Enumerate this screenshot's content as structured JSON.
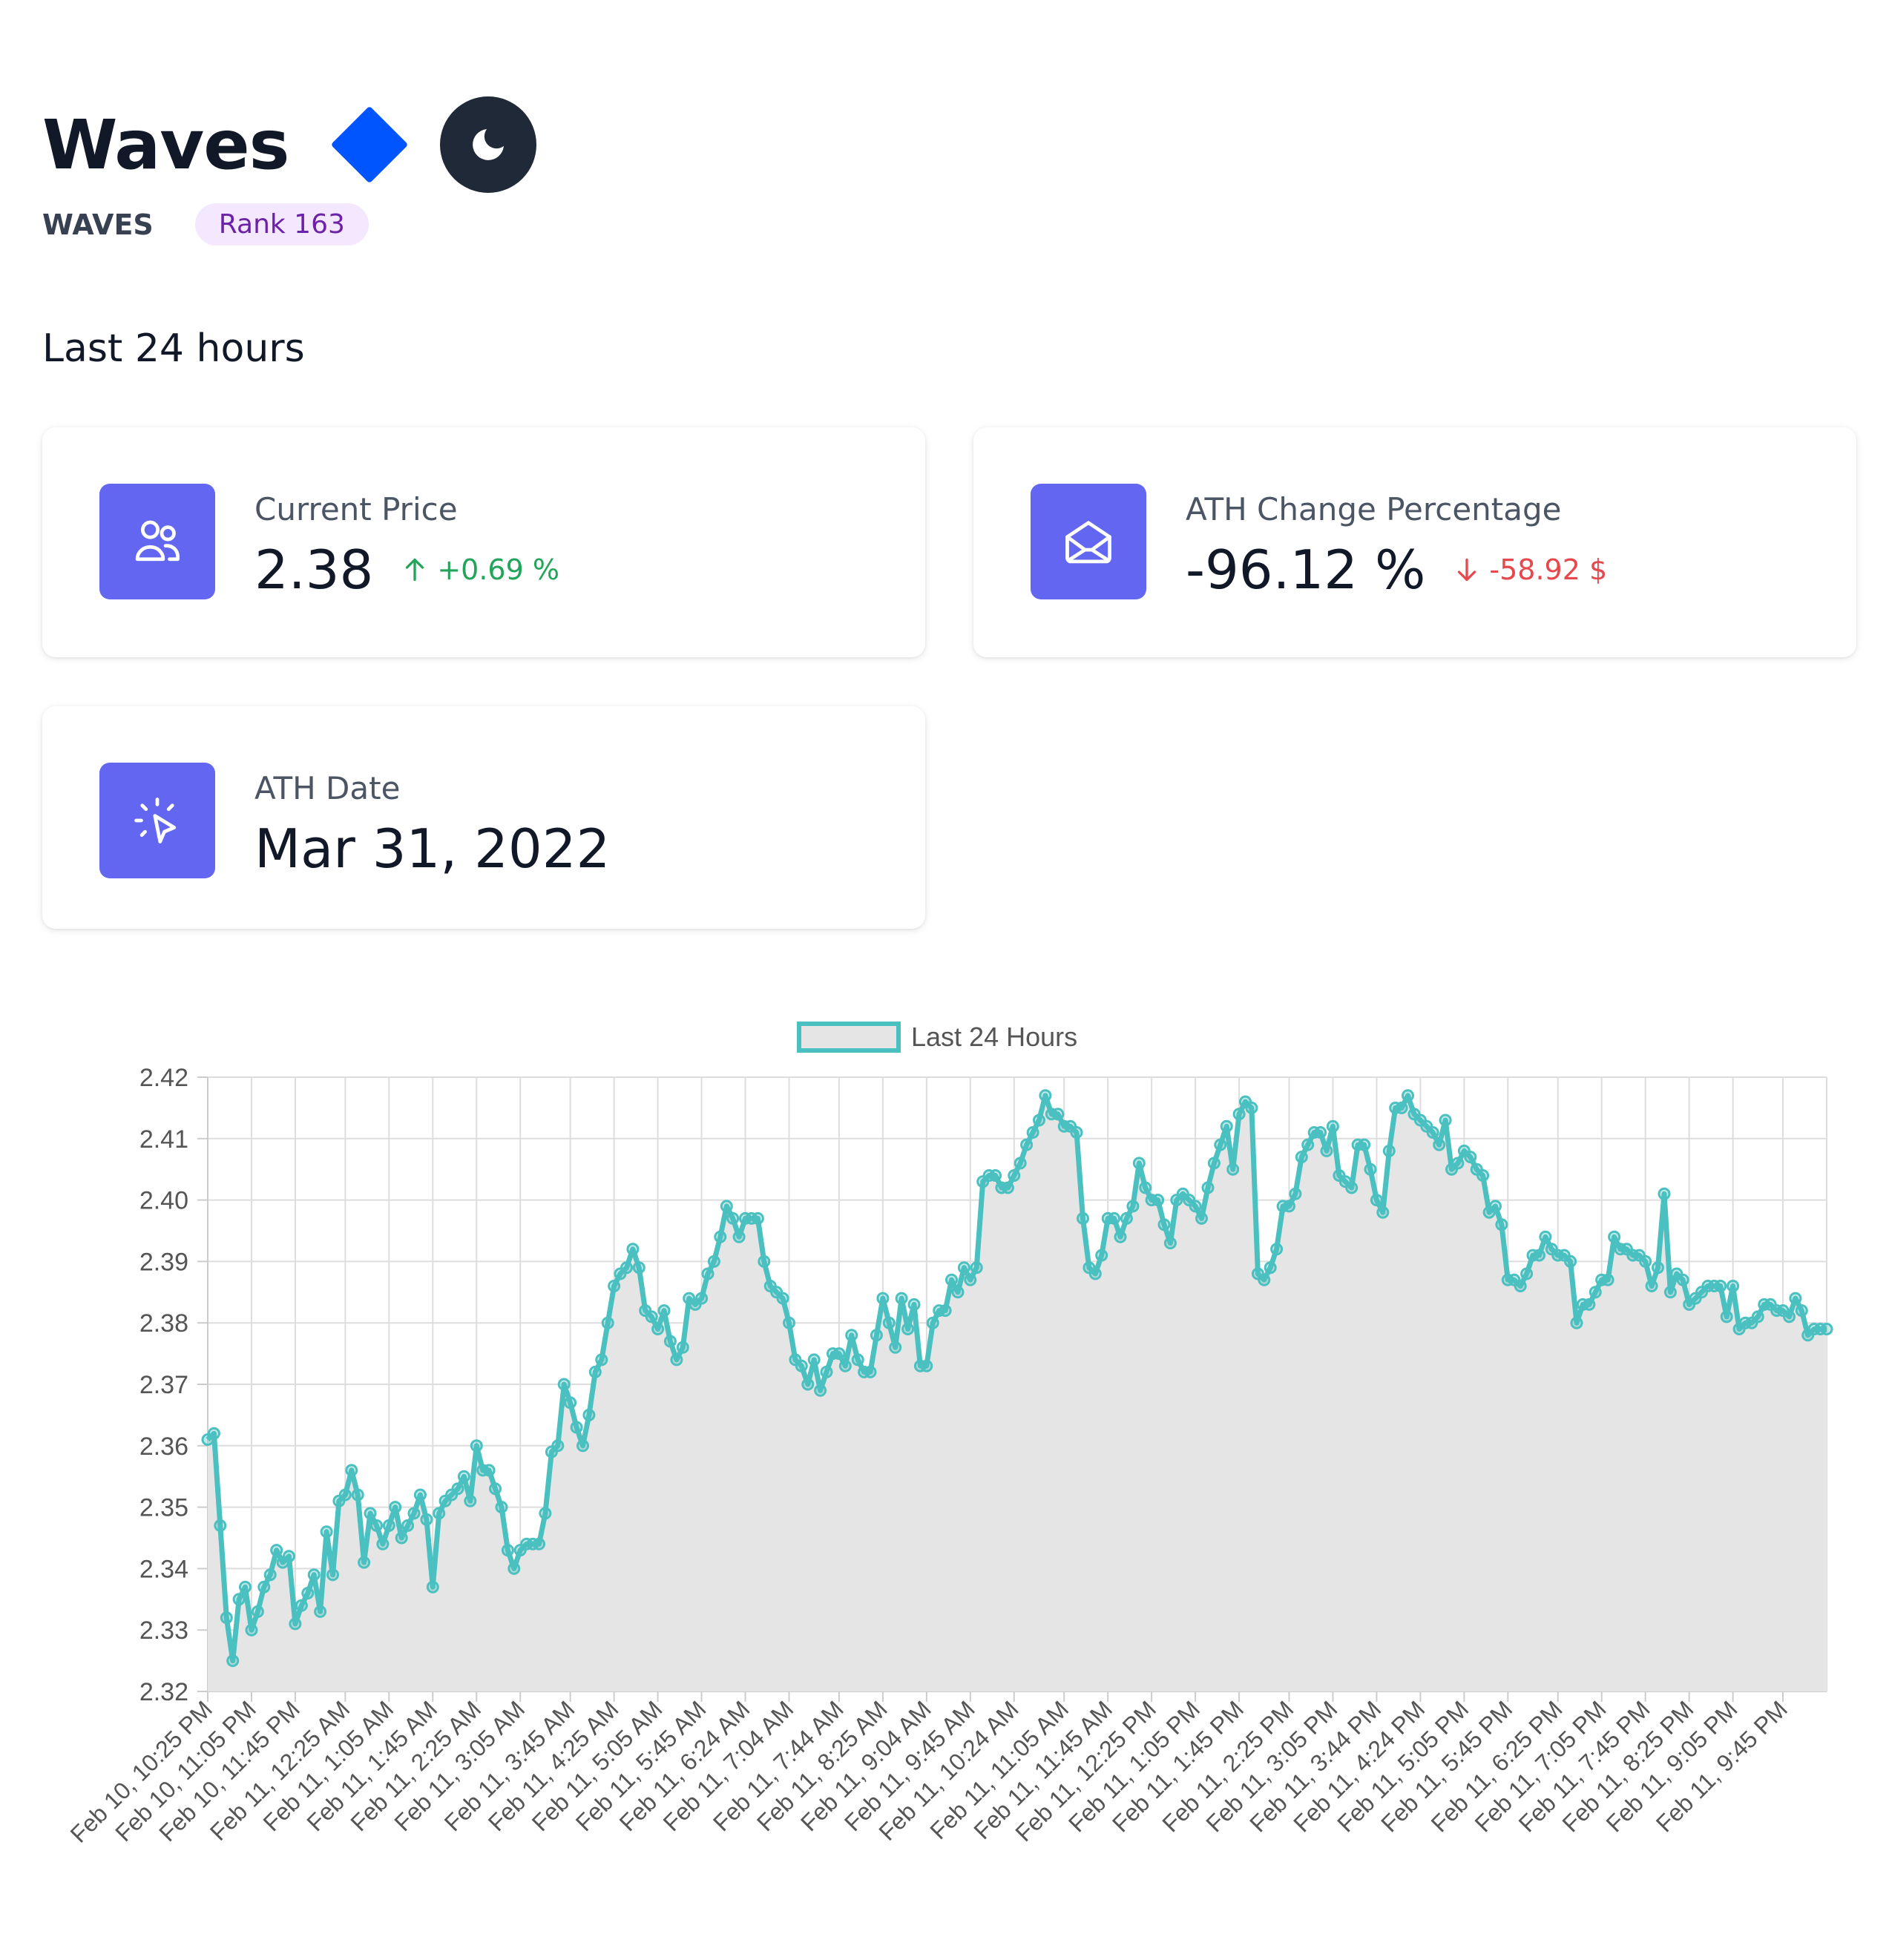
{
  "coin": {
    "name": "Waves",
    "symbol": "WAVES",
    "rank_label": "Rank 163"
  },
  "colors": {
    "accent": "#6366f1",
    "diamond": "#0055ff",
    "up": "#22a55a",
    "down": "#e5484d",
    "line": "#4bc0c0",
    "fill": "#e5e5e5"
  },
  "section_title": "Last 24 hours",
  "cards": {
    "current_price": {
      "icon": "users-icon",
      "label": "Current Price",
      "value": "2.38",
      "change": "+0.69 %",
      "direction": "up"
    },
    "ath_change": {
      "icon": "envelope-open-icon",
      "label": "ATH Change Percentage",
      "value": "-96.12 %",
      "change": "-58.92 $",
      "direction": "down"
    },
    "ath_date": {
      "icon": "cursor-click-icon",
      "label": "ATH Date",
      "value": "Mar 31, 2022"
    }
  },
  "chart_data": {
    "type": "line",
    "legend": "Last 24 Hours",
    "legend_position": "top-center",
    "grid": true,
    "ylim": [
      2.32,
      2.42
    ],
    "y_ticks": [
      "2.42",
      "2.41",
      "2.40",
      "2.39",
      "2.38",
      "2.37",
      "2.36",
      "2.35",
      "2.34",
      "2.33",
      "2.32"
    ],
    "x_tick_labels": [
      "Feb 10, 10:25 PM",
      "Feb 10, 11:05 PM",
      "Feb 10, 11:45 PM",
      "Feb 11, 12:25 AM",
      "Feb 11, 1:05 AM",
      "Feb 11, 1:45 AM",
      "Feb 11, 2:25 AM",
      "Feb 11, 3:05 AM",
      "Feb 11, 3:45 AM",
      "Feb 11, 4:25 AM",
      "Feb 11, 5:05 AM",
      "Feb 11, 5:45 AM",
      "Feb 11, 6:24 AM",
      "Feb 11, 7:04 AM",
      "Feb 11, 7:44 AM",
      "Feb 11, 8:25 AM",
      "Feb 11, 9:04 AM",
      "Feb 11, 9:45 AM",
      "Feb 11, 10:24 AM",
      "Feb 11, 11:05 AM",
      "Feb 11, 11:45 AM",
      "Feb 11, 12:25 PM",
      "Feb 11, 1:05 PM",
      "Feb 11, 1:45 PM",
      "Feb 11, 2:25 PM",
      "Feb 11, 3:05 PM",
      "Feb 11, 3:44 PM",
      "Feb 11, 4:24 PM",
      "Feb 11, 5:05 PM",
      "Feb 11, 5:45 PM",
      "Feb 11, 6:25 PM",
      "Feb 11, 7:05 PM",
      "Feb 11, 7:45 PM",
      "Feb 11, 8:25 PM",
      "Feb 11, 9:05 PM",
      "Feb 11, 9:45 PM"
    ],
    "values": [
      2.361,
      2.362,
      2.347,
      2.332,
      2.325,
      2.335,
      2.337,
      2.33,
      2.333,
      2.337,
      2.339,
      2.343,
      2.341,
      2.342,
      2.331,
      2.334,
      2.336,
      2.339,
      2.333,
      2.346,
      2.339,
      2.351,
      2.352,
      2.356,
      2.352,
      2.341,
      2.349,
      2.347,
      2.344,
      2.347,
      2.35,
      2.345,
      2.347,
      2.349,
      2.352,
      2.348,
      2.337,
      2.349,
      2.351,
      2.352,
      2.353,
      2.355,
      2.351,
      2.36,
      2.356,
      2.356,
      2.353,
      2.35,
      2.343,
      2.34,
      2.343,
      2.344,
      2.344,
      2.344,
      2.349,
      2.359,
      2.36,
      2.37,
      2.367,
      2.363,
      2.36,
      2.365,
      2.372,
      2.374,
      2.38,
      2.386,
      2.388,
      2.389,
      2.392,
      2.389,
      2.382,
      2.381,
      2.379,
      2.382,
      2.377,
      2.374,
      2.376,
      2.384,
      2.383,
      2.384,
      2.388,
      2.39,
      2.394,
      2.399,
      2.397,
      2.394,
      2.397,
      2.397,
      2.397,
      2.39,
      2.386,
      2.385,
      2.384,
      2.38,
      2.374,
      2.373,
      2.37,
      2.374,
      2.369,
      2.372,
      2.375,
      2.375,
      2.373,
      2.378,
      2.374,
      2.372,
      2.372,
      2.378,
      2.384,
      2.38,
      2.376,
      2.384,
      2.379,
      2.383,
      2.373,
      2.373,
      2.38,
      2.382,
      2.382,
      2.387,
      2.385,
      2.389,
      2.387,
      2.389,
      2.403,
      2.404,
      2.404,
      2.402,
      2.402,
      2.404,
      2.406,
      2.409,
      2.411,
      2.413,
      2.417,
      2.414,
      2.414,
      2.412,
      2.412,
      2.411,
      2.397,
      2.389,
      2.388,
      2.391,
      2.397,
      2.397,
      2.394,
      2.397,
      2.399,
      2.406,
      2.402,
      2.4,
      2.4,
      2.396,
      2.393,
      2.4,
      2.401,
      2.4,
      2.399,
      2.397,
      2.402,
      2.406,
      2.409,
      2.412,
      2.405,
      2.414,
      2.416,
      2.415,
      2.388,
      2.387,
      2.389,
      2.392,
      2.399,
      2.399,
      2.401,
      2.407,
      2.409,
      2.411,
      2.411,
      2.408,
      2.412,
      2.404,
      2.403,
      2.402,
      2.409,
      2.409,
      2.405,
      2.4,
      2.398,
      2.408,
      2.415,
      2.415,
      2.417,
      2.414,
      2.413,
      2.412,
      2.411,
      2.409,
      2.413,
      2.405,
      2.406,
      2.408,
      2.407,
      2.405,
      2.404,
      2.398,
      2.399,
      2.396,
      2.387,
      2.387,
      2.386,
      2.388,
      2.391,
      2.391,
      2.394,
      2.392,
      2.391,
      2.391,
      2.39,
      2.38,
      2.383,
      2.383,
      2.385,
      2.387,
      2.387,
      2.394,
      2.392,
      2.392,
      2.391,
      2.391,
      2.39,
      2.386,
      2.389,
      2.401,
      2.385,
      2.388,
      2.387,
      2.383,
      2.384,
      2.385,
      2.386,
      2.386,
      2.386,
      2.381,
      2.386,
      2.379,
      2.38,
      2.38,
      2.381,
      2.383,
      2.383,
      2.382,
      2.382,
      2.381,
      2.384,
      2.382,
      2.378,
      2.379,
      2.379,
      2.379
    ]
  }
}
